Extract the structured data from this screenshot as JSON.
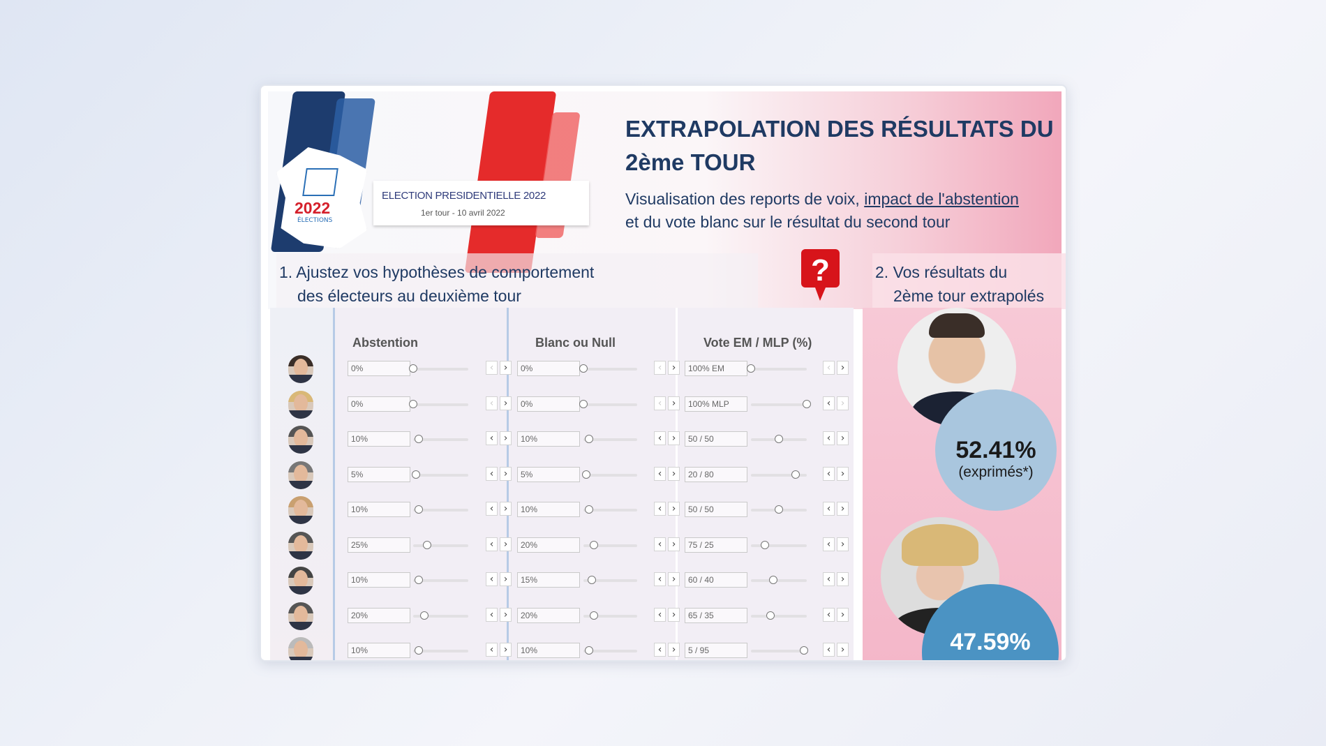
{
  "header": {
    "banner_title": "ELECTION PRESIDENTIELLE 2022",
    "banner_subtitle": "1er tour - 10 avril 2022",
    "logo_year": "2022",
    "logo_label": "ÉLECTIONS",
    "title_line1": "EXTRAPOLATION DES RÉSULTATS DU",
    "title_line2": "2ème TOUR",
    "subtitle_prefix": "Visualisation des reports de voix, ",
    "subtitle_link": "impact de l'abstention",
    "subtitle_line2": "et du vote blanc sur le résultat du second tour"
  },
  "section1": {
    "line1": "1. Ajustez vos hypothèses de comportement",
    "line2": "des électeurs au deuxième tour"
  },
  "section2": {
    "line1": "2. Vos résultats du",
    "line2": "2ème tour extrapolés"
  },
  "help_icon": "question-mark-pin-icon",
  "columns": {
    "abstention": "Abstention",
    "blanc": "Blanc ou Null",
    "vote": "Vote EM / MLP (%)"
  },
  "rows": [
    {
      "abst": "0%",
      "abst_v": 0,
      "blanc": "0%",
      "blanc_v": 0,
      "vote": "100% EM",
      "em_v": 100
    },
    {
      "abst": "0%",
      "abst_v": 0,
      "blanc": "0%",
      "blanc_v": 0,
      "vote": "100% MLP",
      "em_v": 0
    },
    {
      "abst": "10%",
      "abst_v": 10,
      "blanc": "10%",
      "blanc_v": 10,
      "vote": "50 / 50",
      "em_v": 50
    },
    {
      "abst": "5%",
      "abst_v": 5,
      "blanc": "5%",
      "blanc_v": 5,
      "vote": "20 / 80",
      "em_v": 20
    },
    {
      "abst": "10%",
      "abst_v": 10,
      "blanc": "10%",
      "blanc_v": 10,
      "vote": "50 / 50",
      "em_v": 50
    },
    {
      "abst": "25%",
      "abst_v": 25,
      "blanc": "20%",
      "blanc_v": 20,
      "vote": "75 / 25",
      "em_v": 75
    },
    {
      "abst": "10%",
      "abst_v": 10,
      "blanc": "15%",
      "blanc_v": 15,
      "vote": "60 / 40",
      "em_v": 60
    },
    {
      "abst": "20%",
      "abst_v": 20,
      "blanc": "20%",
      "blanc_v": 20,
      "vote": "65 / 35",
      "em_v": 65
    },
    {
      "abst": "10%",
      "abst_v": 10,
      "blanc": "10%",
      "blanc_v": 10,
      "vote": "5 / 95",
      "em_v": 5
    }
  ],
  "results": {
    "em_percent": "52.41%",
    "em_note": "(exprimés*)",
    "mlp_percent": "47.59%"
  },
  "colors": {
    "navy": "#1f3a63",
    "em_bubble": "#a9c6de",
    "mlp_bubble": "#4b93c3",
    "red": "#d5202b"
  }
}
